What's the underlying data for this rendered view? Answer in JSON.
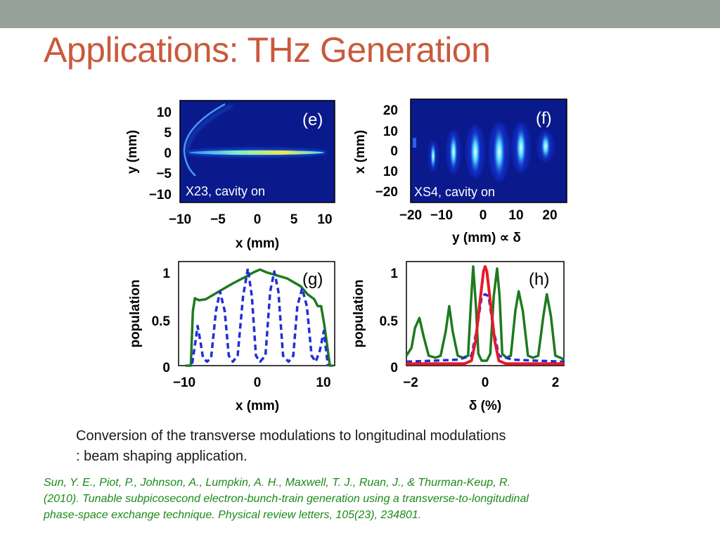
{
  "slide": {
    "title": "Applications: THz Generation",
    "caption_lines": [
      "Conversion of the transverse modulations to longitudinal modulations",
      ": beam shaping application."
    ],
    "reference_lines": [
      "Sun, Y. E., Piot, P., Johnson, A., Lumpkin, A. H., Maxwell, T. J., Ruan, J., & Thurman-Keup, R.",
      "(2010). Tunable subpicosecond electron-bunch-train generation using a transverse-to-longitudinal",
      "phase-space exchange technique. Physical review letters, 105(23), 234801."
    ],
    "colors": {
      "title": "#c95a3c",
      "topbar": "#97a39a",
      "reference": "#1a8a1a",
      "image_background": "#0a1a8c",
      "green_curve": "#1e7a1e",
      "blue_dashed": "#1f2fd6",
      "red_curve": "#e8182a"
    }
  },
  "chart_data": [
    {
      "type": "heatmap",
      "panel_label": "(e)",
      "inset_label": "X23, cavity on",
      "xlabel": "x (mm)",
      "ylabel": "y (mm)",
      "xticks": [
        "−10",
        "−5",
        "0",
        "5",
        "10"
      ],
      "yticks": [
        "10",
        "5",
        "0",
        "−5",
        "−10"
      ],
      "xlim": [
        -11,
        11
      ],
      "ylim": [
        -12,
        12
      ]
    },
    {
      "type": "heatmap",
      "panel_label": "(f)",
      "inset_label": "XS4, cavity on",
      "xlabel": "y (mm) ∝ δ",
      "ylabel": "x (mm)",
      "xticks": [
        "−20",
        "−10",
        "0",
        "10",
        "20"
      ],
      "yticks": [
        "20",
        "10",
        "0",
        "10",
        "−20"
      ],
      "xlim": [
        -25,
        25
      ],
      "ylim": [
        -25,
        25
      ]
    },
    {
      "type": "line",
      "panel_label": "(g)",
      "xlabel": "x (mm)",
      "ylabel": "population",
      "xticks": [
        "−10",
        "0",
        "10"
      ],
      "yticks": [
        "0",
        "0.5",
        "1"
      ],
      "xlim": [
        -12,
        11
      ],
      "ylim": [
        0,
        1.05
      ],
      "series": [
        {
          "style": "solid-green",
          "x": [
            -11,
            -10.2,
            -9.9,
            -9.6,
            -9,
            -8,
            -6,
            -4,
            -2,
            -1,
            0,
            1,
            2,
            4,
            6,
            7,
            8,
            8.5,
            9,
            9.5,
            10,
            10.3,
            10.8
          ],
          "y": [
            0,
            0,
            0.55,
            0.68,
            0.66,
            0.67,
            0.75,
            0.83,
            0.9,
            0.94,
            0.97,
            0.94,
            0.92,
            0.88,
            0.8,
            0.72,
            0.67,
            0.6,
            0.6,
            0.4,
            0.15,
            0,
            0
          ]
        },
        {
          "style": "dashed-blue",
          "x": [
            -10,
            -9.5,
            -9.2,
            -8.8,
            -8.4,
            -7.8,
            -7.2,
            -6.5,
            -5.9,
            -5.2,
            -4.6,
            -4,
            -3.3,
            -2.5,
            -1.8,
            -1.2,
            -0.6,
            0,
            0.8,
            1.5,
            2.1,
            2.7,
            3.4,
            4.2,
            4.9,
            5.5,
            6.2,
            6.9,
            7.6,
            8.2,
            8.8,
            9.4,
            10
          ],
          "y": [
            0.02,
            0.25,
            0.4,
            0.25,
            0.08,
            0.04,
            0.08,
            0.55,
            0.75,
            0.55,
            0.1,
            0.04,
            0.1,
            0.7,
            0.98,
            0.7,
            0.1,
            0.04,
            0.1,
            0.75,
            0.95,
            0.75,
            0.1,
            0.04,
            0.1,
            0.6,
            0.78,
            0.6,
            0.1,
            0.04,
            0.15,
            0.35,
            0
          ]
        }
      ]
    },
    {
      "type": "line",
      "panel_label": "(h)",
      "xlabel": "δ (%)",
      "ylabel": "population",
      "xticks": [
        "−2",
        "0",
        "2"
      ],
      "yticks": [
        "0",
        "0.5",
        "1"
      ],
      "xlim": [
        -2.3,
        2.3
      ],
      "ylim": [
        0,
        1.05
      ],
      "series": [
        {
          "style": "solid-green",
          "x": [
            -2.3,
            -2.15,
            -2.05,
            -1.92,
            -1.8,
            -1.65,
            -1.45,
            -1.3,
            -1.15,
            -1.05,
            -0.95,
            -0.8,
            -0.65,
            -0.5,
            -0.42,
            -0.35,
            -0.27,
            -0.2,
            -0.1,
            0.05,
            0.15,
            0.25,
            0.35,
            0.42,
            0.5,
            0.62,
            0.75,
            0.88,
            0.98,
            1.1,
            1.25,
            1.4,
            1.55,
            1.7,
            1.8,
            1.92,
            2.05,
            2.2,
            2.3
          ],
          "y": [
            0.1,
            0.18,
            0.38,
            0.48,
            0.3,
            0.1,
            0.08,
            0.1,
            0.35,
            0.6,
            0.35,
            0.1,
            0.08,
            0.1,
            0.6,
            1.0,
            0.6,
            0.12,
            0.05,
            0.05,
            0.12,
            0.7,
            0.98,
            0.7,
            0.12,
            0.08,
            0.1,
            0.55,
            0.75,
            0.55,
            0.1,
            0.08,
            0.1,
            0.5,
            0.72,
            0.5,
            0.1,
            0.08,
            0.06
          ]
        },
        {
          "style": "dashed-blue",
          "x": [
            -2.3,
            -1.5,
            -0.8,
            -0.4,
            -0.25,
            -0.1,
            0,
            0.1,
            0.25,
            0.4,
            0.8,
            1.5,
            2.3
          ],
          "y": [
            0.04,
            0.05,
            0.06,
            0.1,
            0.35,
            0.7,
            0.72,
            0.7,
            0.35,
            0.1,
            0.06,
            0.05,
            0.04
          ]
        },
        {
          "style": "solid-red",
          "x": [
            -2.3,
            -0.6,
            -0.4,
            -0.28,
            -0.15,
            -0.05,
            0,
            0.05,
            0.15,
            0.28,
            0.4,
            0.6,
            2.3
          ],
          "y": [
            0.02,
            0.02,
            0.05,
            0.25,
            0.65,
            0.95,
            1.0,
            0.95,
            0.65,
            0.25,
            0.05,
            0.02,
            0.02
          ]
        }
      ]
    }
  ]
}
